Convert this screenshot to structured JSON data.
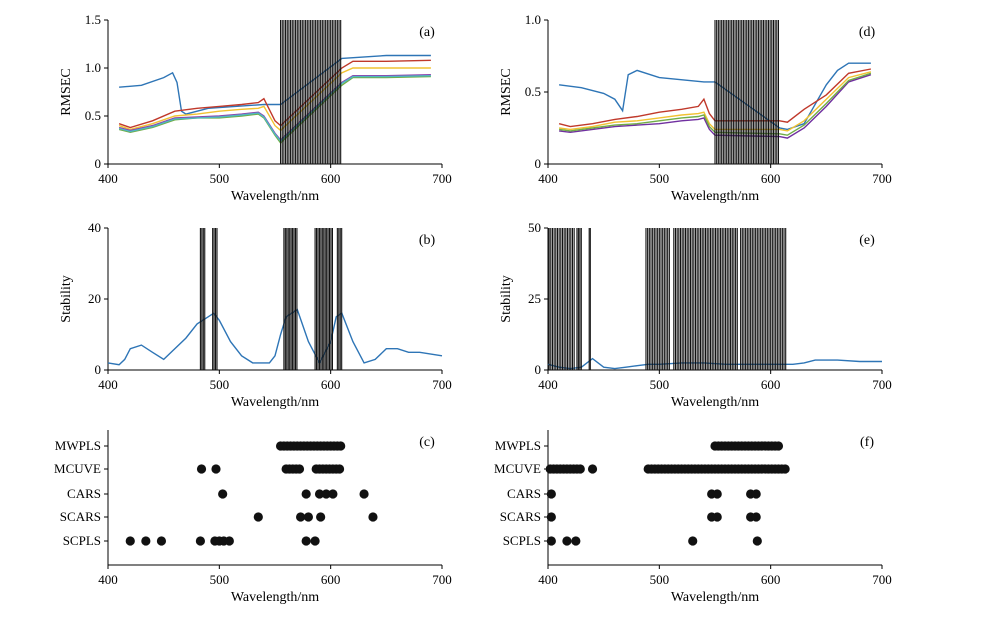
{
  "chart_data": [
    {
      "id": "a",
      "type": "line",
      "panel_label": "(a)",
      "xlabel": "Wavelength/nm",
      "ylabel": "RMSEC",
      "xlim": [
        400,
        700
      ],
      "ylim": [
        0,
        1.5
      ],
      "xticks": [
        "400",
        "500",
        "600",
        "700"
      ],
      "yticks": [
        "0",
        "0.5",
        "1.0",
        "1.5"
      ],
      "bars": {
        "from": 555,
        "to": 610,
        "step": 1.5,
        "height": 1.5
      },
      "series": [
        {
          "color": "#2e75b6",
          "x": [
            410,
            430,
            450,
            458,
            462,
            466,
            470,
            490,
            540,
            555,
            610,
            650,
            690
          ],
          "y": [
            0.8,
            0.82,
            0.9,
            0.95,
            0.85,
            0.55,
            0.52,
            0.58,
            0.62,
            0.62,
            1.1,
            1.13,
            1.13
          ]
        },
        {
          "color": "#c0392b",
          "x": [
            410,
            420,
            440,
            460,
            480,
            500,
            520,
            535,
            540,
            550,
            555,
            610,
            620,
            650,
            690
          ],
          "y": [
            0.42,
            0.38,
            0.45,
            0.55,
            0.58,
            0.6,
            0.62,
            0.64,
            0.68,
            0.45,
            0.4,
            1.0,
            1.07,
            1.07,
            1.08
          ]
        },
        {
          "color": "#f1c232",
          "x": [
            410,
            420,
            440,
            460,
            480,
            500,
            520,
            535,
            540,
            550,
            555,
            610,
            620,
            650,
            690
          ],
          "y": [
            0.4,
            0.36,
            0.42,
            0.5,
            0.52,
            0.55,
            0.57,
            0.58,
            0.6,
            0.4,
            0.35,
            0.95,
            1.0,
            1.0,
            1.0
          ]
        },
        {
          "color": "#8e44ad",
          "x": [
            410,
            420,
            440,
            460,
            480,
            500,
            520,
            535,
            540,
            550,
            555,
            610,
            620,
            650,
            690
          ],
          "y": [
            0.38,
            0.35,
            0.4,
            0.48,
            0.49,
            0.5,
            0.52,
            0.54,
            0.5,
            0.32,
            0.25,
            0.85,
            0.92,
            0.92,
            0.93
          ]
        },
        {
          "color": "#70ad47",
          "x": [
            410,
            420,
            440,
            460,
            480,
            500,
            520,
            535,
            540,
            550,
            555,
            610,
            620,
            650,
            690
          ],
          "y": [
            0.36,
            0.33,
            0.38,
            0.46,
            0.48,
            0.48,
            0.5,
            0.52,
            0.48,
            0.3,
            0.22,
            0.82,
            0.9,
            0.9,
            0.91
          ]
        },
        {
          "color": "#4fb6c4",
          "x": [
            410,
            420,
            440,
            460,
            480,
            500,
            520,
            535,
            540,
            550,
            555,
            610,
            620,
            650,
            690
          ],
          "y": [
            0.37,
            0.34,
            0.39,
            0.47,
            0.48,
            0.49,
            0.51,
            0.53,
            0.49,
            0.31,
            0.24,
            0.84,
            0.91,
            0.91,
            0.92
          ]
        }
      ]
    },
    {
      "id": "b",
      "type": "line",
      "panel_label": "(b)",
      "xlabel": "Wavelength/nm",
      "ylabel": "Stability",
      "xlim": [
        400,
        700
      ],
      "ylim": [
        0,
        40
      ],
      "xticks": [
        "400",
        "500",
        "600",
        "700"
      ],
      "yticks": [
        "0",
        "20",
        "40"
      ],
      "bar_groups": [
        {
          "from": 483,
          "to": 487,
          "step": 1.3,
          "height": 40
        },
        {
          "from": 494,
          "to": 498,
          "step": 1.3,
          "height": 40
        },
        {
          "from": 558,
          "to": 570,
          "step": 1.3,
          "height": 40
        },
        {
          "from": 586,
          "to": 602,
          "step": 1.3,
          "height": 40
        },
        {
          "from": 606,
          "to": 610,
          "step": 1.3,
          "height": 40
        }
      ],
      "series": [
        {
          "color": "#2e75b6",
          "x": [
            400,
            410,
            415,
            420,
            430,
            440,
            450,
            460,
            470,
            480,
            490,
            495,
            500,
            510,
            520,
            530,
            545,
            550,
            555,
            560,
            570,
            580,
            590,
            600,
            605,
            610,
            620,
            630,
            640,
            650,
            660,
            670,
            680,
            700
          ],
          "y": [
            2,
            1.5,
            3,
            6,
            7,
            5,
            3,
            6,
            9,
            13,
            15,
            16,
            14,
            8,
            4,
            2,
            2,
            4,
            10,
            15,
            17,
            8,
            2,
            8,
            15,
            16,
            8,
            2,
            3,
            6,
            6,
            5,
            5,
            4
          ]
        }
      ]
    },
    {
      "id": "c",
      "type": "scatter",
      "panel_label": "(c)",
      "xlabel": "Wavelength/nm",
      "xlim": [
        400,
        700
      ],
      "xticks": [
        "400",
        "500",
        "600",
        "700"
      ],
      "categories": [
        "MWPLS",
        "MCUVE",
        "CARS",
        "SCARS",
        "SCPLS"
      ],
      "rows": [
        {
          "name": "MWPLS",
          "x": [
            555,
            558,
            561,
            564,
            567,
            570,
            573,
            576,
            579,
            582,
            585,
            588,
            591,
            594,
            597,
            600,
            603,
            606,
            609
          ]
        },
        {
          "name": "MCUVE",
          "x": [
            484,
            497,
            560,
            563,
            566,
            569,
            572,
            587,
            590,
            593,
            596,
            599,
            602,
            605,
            608
          ]
        },
        {
          "name": "CARS",
          "x": [
            503,
            578,
            590,
            596,
            602,
            630
          ]
        },
        {
          "name": "SCARS",
          "x": [
            535,
            573,
            580,
            591,
            638
          ]
        },
        {
          "name": "SCPLS",
          "x": [
            420,
            434,
            448,
            483,
            496,
            500,
            504,
            509,
            578,
            586
          ]
        }
      ]
    },
    {
      "id": "d",
      "type": "line",
      "panel_label": "(d)",
      "xlabel": "Wavelength/nm",
      "ylabel": "RMSEC",
      "xlim": [
        400,
        700
      ],
      "ylim": [
        0,
        1.0
      ],
      "xticks": [
        "400",
        "500",
        "600",
        "700"
      ],
      "yticks": [
        "0",
        "0.5",
        "1.0"
      ],
      "bars": {
        "from": 550,
        "to": 608,
        "step": 1.5,
        "height": 1.0
      },
      "series": [
        {
          "color": "#2e75b6",
          "x": [
            410,
            430,
            450,
            460,
            467,
            472,
            480,
            500,
            540,
            550,
            608,
            615,
            630,
            650,
            660,
            670,
            690
          ],
          "y": [
            0.55,
            0.53,
            0.49,
            0.45,
            0.37,
            0.62,
            0.65,
            0.6,
            0.57,
            0.57,
            0.25,
            0.24,
            0.28,
            0.55,
            0.65,
            0.7,
            0.7
          ]
        },
        {
          "color": "#c0392b",
          "x": [
            410,
            420,
            440,
            460,
            480,
            500,
            520,
            535,
            540,
            545,
            550,
            608,
            615,
            630,
            650,
            670,
            690
          ],
          "y": [
            0.28,
            0.26,
            0.28,
            0.31,
            0.33,
            0.36,
            0.38,
            0.4,
            0.45,
            0.35,
            0.3,
            0.3,
            0.29,
            0.38,
            0.48,
            0.63,
            0.66
          ]
        },
        {
          "color": "#f1c232",
          "x": [
            410,
            420,
            440,
            460,
            480,
            500,
            520,
            535,
            540,
            545,
            550,
            608,
            615,
            630,
            650,
            670,
            690
          ],
          "y": [
            0.25,
            0.24,
            0.26,
            0.29,
            0.3,
            0.32,
            0.34,
            0.35,
            0.36,
            0.28,
            0.24,
            0.24,
            0.23,
            0.3,
            0.45,
            0.6,
            0.64
          ]
        },
        {
          "color": "#7030a0",
          "x": [
            410,
            420,
            440,
            460,
            480,
            500,
            520,
            535,
            540,
            545,
            550,
            608,
            615,
            630,
            650,
            670,
            690
          ],
          "y": [
            0.23,
            0.22,
            0.24,
            0.26,
            0.27,
            0.28,
            0.3,
            0.31,
            0.32,
            0.24,
            0.2,
            0.19,
            0.18,
            0.25,
            0.4,
            0.57,
            0.62
          ]
        },
        {
          "color": "#70ad47",
          "x": [
            410,
            420,
            440,
            460,
            480,
            500,
            520,
            535,
            540,
            545,
            550,
            608,
            615,
            630,
            650,
            670,
            690
          ],
          "y": [
            0.24,
            0.23,
            0.25,
            0.27,
            0.28,
            0.3,
            0.32,
            0.33,
            0.34,
            0.26,
            0.22,
            0.21,
            0.2,
            0.27,
            0.42,
            0.58,
            0.63
          ]
        }
      ]
    },
    {
      "id": "e",
      "type": "line",
      "panel_label": "(e)",
      "xlabel": "Wavelength/nm",
      "ylabel": "Stability",
      "xlim": [
        400,
        700
      ],
      "ylim": [
        0,
        50
      ],
      "xticks": [
        "400",
        "500",
        "600",
        "700"
      ],
      "yticks": [
        "0",
        "25",
        "50"
      ],
      "bar_groups": [
        {
          "from": 401,
          "to": 424,
          "step": 1.5,
          "height": 50
        },
        {
          "from": 426,
          "to": 430,
          "step": 1.3,
          "height": 50
        },
        {
          "from": 437,
          "to": 438,
          "step": 1.0,
          "height": 50
        },
        {
          "from": 488,
          "to": 510,
          "step": 1.5,
          "height": 50
        },
        {
          "from": 513,
          "to": 570,
          "step": 1.5,
          "height": 50
        },
        {
          "from": 573,
          "to": 614,
          "step": 1.5,
          "height": 50
        }
      ],
      "series": [
        {
          "color": "#2e75b6",
          "x": [
            400,
            410,
            420,
            430,
            440,
            450,
            460,
            470,
            480,
            490,
            500,
            520,
            540,
            560,
            580,
            600,
            620,
            630,
            640,
            660,
            680,
            700
          ],
          "y": [
            2,
            1,
            0.5,
            1,
            4,
            1,
            0.5,
            1,
            1.5,
            2,
            2,
            2.5,
            2.5,
            2,
            2,
            2,
            2,
            2.5,
            3.5,
            3.5,
            3,
            3
          ]
        }
      ]
    },
    {
      "id": "f",
      "type": "scatter",
      "panel_label": "(f)",
      "xlabel": "Wavelength/nm",
      "xlim": [
        400,
        700
      ],
      "xticks": [
        "400",
        "500",
        "600",
        "700"
      ],
      "categories": [
        "MWPLS",
        "MCUVE",
        "CARS",
        "SCARS",
        "SCPLS"
      ],
      "rows": [
        {
          "name": "MWPLS",
          "x": [
            550,
            553,
            556,
            559,
            562,
            565,
            568,
            571,
            574,
            577,
            580,
            583,
            586,
            589,
            592,
            595,
            598,
            601,
            604,
            607
          ]
        },
        {
          "name": "MCUVE",
          "x": [
            402,
            405,
            408,
            411,
            414,
            417,
            420,
            423,
            426,
            429,
            440,
            490,
            493,
            496,
            499,
            502,
            505,
            508,
            511,
            514,
            517,
            520,
            523,
            526,
            529,
            532,
            535,
            538,
            541,
            544,
            547,
            550,
            553,
            556,
            559,
            562,
            565,
            568,
            571,
            574,
            577,
            580,
            583,
            586,
            589,
            592,
            595,
            598,
            601,
            604,
            607,
            610,
            613
          ]
        },
        {
          "name": "CARS",
          "x": [
            403,
            547,
            552,
            582,
            587
          ]
        },
        {
          "name": "SCARS",
          "x": [
            403,
            547,
            552,
            582,
            587
          ]
        },
        {
          "name": "SCPLS",
          "x": [
            403,
            417,
            425,
            530,
            588
          ]
        }
      ]
    }
  ]
}
